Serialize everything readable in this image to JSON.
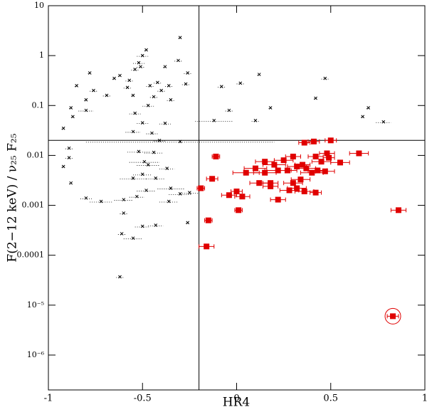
{
  "chart_data": {
    "type": "scatter",
    "x_label": "HR4",
    "y_label": "F(2−12 keV) / ν₂₅ F₂₅",
    "xlim": [
      -1,
      1
    ],
    "ylim": [
      2e-07,
      10
    ],
    "ylog": true,
    "xticks": [
      -1,
      -0.5,
      0,
      0.5,
      1
    ],
    "yticks": [
      10,
      1,
      0.1,
      0.01,
      0.001,
      0.0001,
      {
        "value": 1e-05,
        "label": "10⁻⁵"
      },
      {
        "value": 1e-06,
        "label": "10⁻⁶"
      }
    ],
    "vlines": [
      -0.2
    ],
    "hlines": [
      0.02
    ],
    "highlight": {
      "x": 0.83,
      "y": 6e-06
    },
    "series": [
      {
        "color": "#000000",
        "marker": "cross",
        "x": [
          -0.92,
          -0.88,
          -0.87,
          -0.89,
          -0.92,
          -0.89,
          -0.88,
          -0.85,
          -0.8,
          -0.78,
          -0.76,
          -0.8,
          -0.8,
          -0.72,
          -0.69,
          -0.65,
          -0.62,
          -0.57,
          -0.58,
          -0.55,
          -0.54,
          -0.52,
          -0.51,
          -0.5,
          -0.48,
          -0.46,
          -0.47,
          -0.44,
          -0.42,
          -0.4,
          -0.38,
          -0.36,
          -0.35,
          -0.3,
          -0.31,
          -0.26,
          -0.27,
          -0.54,
          -0.55,
          -0.5,
          -0.45,
          -0.41,
          -0.38,
          -0.52,
          -0.49,
          -0.47,
          -0.44,
          -0.55,
          -0.5,
          -0.48,
          -0.53,
          -0.6,
          -0.35,
          -0.3,
          -0.25,
          -0.43,
          -0.37,
          -0.36,
          -0.6,
          -0.61,
          -0.55,
          -0.5,
          -0.43,
          -0.62,
          -0.26,
          -0.12,
          -0.04,
          -0.08,
          0.02,
          0.12,
          0.18,
          0.1,
          0.42,
          0.47,
          0.67,
          0.7,
          0.78,
          -0.3
        ],
        "values": [
          0.035,
          0.09,
          0.06,
          0.014,
          0.006,
          0.009,
          0.0028,
          0.25,
          0.13,
          0.45,
          0.2,
          0.08,
          0.0014,
          0.0012,
          0.16,
          0.35,
          0.4,
          0.32,
          0.23,
          0.16,
          0.53,
          0.72,
          0.6,
          1.0,
          1.3,
          0.25,
          0.1,
          0.15,
          0.29,
          0.2,
          0.6,
          0.25,
          0.13,
          2.3,
          0.8,
          0.45,
          0.27,
          0.07,
          0.03,
          0.045,
          0.028,
          0.02,
          0.044,
          0.012,
          0.0075,
          0.0065,
          0.0115,
          0.0035,
          0.0042,
          0.002,
          0.0015,
          0.0013,
          0.0022,
          0.0017,
          0.0018,
          0.0035,
          0.0055,
          0.0012,
          0.0007,
          0.00027,
          0.00022,
          0.00038,
          0.0004,
          3.7e-05,
          0.00045,
          0.05,
          0.08,
          0.24,
          0.28,
          0.42,
          0.09,
          0.05,
          0.14,
          0.35,
          0.06,
          0.09,
          0.047,
          0.019
        ],
        "xerr": [
          0.01,
          0.01,
          0.01,
          0.02,
          0.01,
          0.02,
          0.01,
          0.01,
          0.01,
          0.01,
          0.02,
          0.04,
          0.03,
          0.06,
          0.02,
          0.01,
          0.01,
          0.02,
          0.02,
          0.01,
          0.02,
          0.03,
          0.02,
          0.03,
          0.01,
          0.02,
          0.03,
          0.02,
          0.02,
          0.02,
          0.01,
          0.02,
          0.02,
          0.01,
          0.02,
          0.02,
          0.02,
          0.03,
          0.04,
          0.03,
          0.03,
          0.03,
          0.03,
          0.06,
          0.08,
          0.06,
          0.05,
          0.07,
          0.05,
          0.05,
          0.04,
          0.05,
          0.07,
          0.06,
          0.05,
          0.05,
          0.04,
          0.05,
          0.02,
          0.02,
          0.05,
          0.04,
          0.04,
          0.02,
          0.01,
          0.1,
          0.02,
          0.02,
          0.02,
          0.01,
          0.01,
          0.02,
          0.01,
          0.02,
          0.01,
          0.01,
          0.04,
          0.5
        ]
      },
      {
        "color": "#e00000",
        "marker": "square",
        "x": [
          0.36,
          0.41,
          0.5,
          0.48,
          0.49,
          0.42,
          0.45,
          0.35,
          0.25,
          0.3,
          0.2,
          0.15,
          0.1,
          0.05,
          0.15,
          0.22,
          0.27,
          0.32,
          0.37,
          0.4,
          0.43,
          0.47,
          0.55,
          0.65,
          0.18,
          0.18,
          0.12,
          0.3,
          0.34,
          0.32,
          0.28,
          0.36,
          0.42,
          0.22,
          0.0,
          -0.04,
          0.03,
          0.01,
          -0.13,
          -0.11,
          -0.19,
          -0.15,
          -0.16,
          0.86,
          0.83
        ],
        "values": [
          0.018,
          0.019,
          0.02,
          0.011,
          0.009,
          0.0095,
          0.0075,
          0.0065,
          0.008,
          0.0095,
          0.0065,
          0.0075,
          0.0055,
          0.0045,
          0.0045,
          0.005,
          0.005,
          0.006,
          0.0055,
          0.0045,
          0.005,
          0.0048,
          0.0072,
          0.011,
          0.0028,
          0.0024,
          0.0028,
          0.0028,
          0.0033,
          0.0022,
          0.002,
          0.0019,
          0.0018,
          0.0013,
          0.0019,
          0.0016,
          0.0015,
          0.0008,
          0.0034,
          0.0095,
          0.0022,
          0.0005,
          0.00015,
          0.0008,
          6e-06
        ],
        "xerr": [
          0.03,
          0.03,
          0.03,
          0.04,
          0.03,
          0.04,
          0.05,
          0.04,
          0.05,
          0.04,
          0.06,
          0.05,
          0.06,
          0.07,
          0.06,
          0.07,
          0.05,
          0.05,
          0.05,
          0.06,
          0.05,
          0.05,
          0.05,
          0.05,
          0.04,
          0.04,
          0.05,
          0.05,
          0.05,
          0.05,
          0.05,
          0.05,
          0.03,
          0.04,
          0.03,
          0.04,
          0.04,
          0.02,
          0.03,
          0.02,
          0.02,
          0.02,
          0.04,
          0.04,
          0.03
        ]
      }
    ]
  }
}
